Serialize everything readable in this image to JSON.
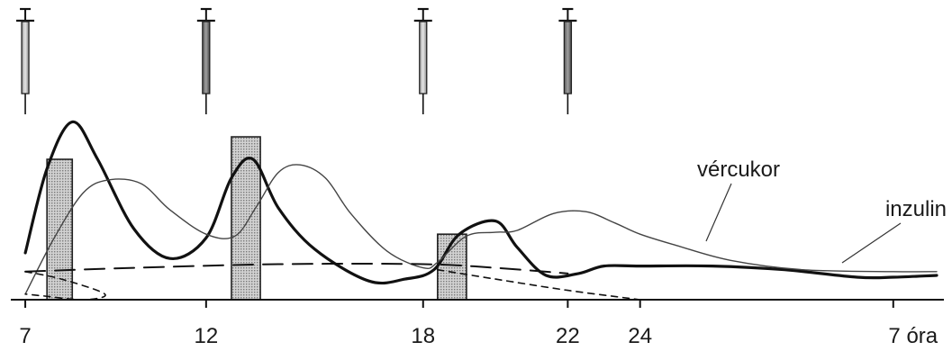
{
  "chart_data": {
    "type": "line",
    "x_ticks": [
      {
        "value": 7,
        "label": "7"
      },
      {
        "value": 12,
        "label": "12"
      },
      {
        "value": 18,
        "label": "18"
      },
      {
        "value": 22,
        "label": "22"
      },
      {
        "value": 24,
        "label": "24"
      },
      {
        "value": 31,
        "label": "7 óra"
      }
    ],
    "xlim": [
      6.6,
      32.4
    ],
    "ylim": [
      0,
      10
    ],
    "grid": false,
    "legend": "none",
    "labels": {
      "blood_sugar": "vércukor",
      "insulin": "inzulin"
    },
    "injections": [
      {
        "time": 7,
        "fill": "light"
      },
      {
        "time": 12,
        "fill": "dark"
      },
      {
        "time": 18,
        "fill": "light"
      },
      {
        "time": 22,
        "fill": "dark"
      }
    ],
    "meals": [
      {
        "start": 7.6,
        "end": 8.3,
        "value": 7.5
      },
      {
        "start": 12.7,
        "end": 13.5,
        "value": 8.7
      },
      {
        "start": 18.4,
        "end": 19.2,
        "value": 3.5
      }
    ],
    "series": [
      {
        "key": "blood_sugar",
        "style": "thick",
        "color": "#111111",
        "x": [
          7.0,
          7.6,
          8.3,
          9.0,
          10.0,
          11.0,
          12.0,
          12.7,
          13.3,
          14.0,
          15.0,
          16.5,
          17.5,
          18.3,
          19.0,
          20.0,
          20.6,
          21.4,
          22.3,
          23.0,
          24.0,
          26.0,
          28.0,
          30.0,
          31.0,
          32.2
        ],
        "y": [
          2.5,
          7.0,
          9.5,
          7.5,
          3.8,
          2.2,
          3.3,
          6.5,
          7.5,
          4.9,
          2.7,
          1.0,
          1.1,
          1.6,
          3.5,
          4.2,
          2.8,
          1.3,
          1.4,
          1.8,
          1.8,
          1.8,
          1.6,
          1.2,
          1.2,
          1.3
        ]
      },
      {
        "key": "insulin",
        "style": "thin",
        "color": "#444444",
        "x": [
          7.0,
          7.8,
          8.6,
          9.3,
          10.2,
          11.0,
          12.0,
          12.8,
          13.4,
          14.0,
          14.6,
          15.3,
          16.0,
          17.0,
          18.0,
          18.4,
          19.2,
          20.0,
          20.6,
          21.6,
          22.5,
          23.3,
          24.0,
          25.0,
          26.5,
          28.5,
          31.0,
          32.2
        ],
        "y": [
          0.3,
          3.3,
          5.7,
          6.4,
          6.2,
          4.8,
          3.5,
          3.4,
          5.0,
          6.8,
          7.2,
          6.5,
          4.6,
          2.6,
          1.7,
          2.0,
          3.4,
          3.6,
          3.7,
          4.6,
          4.7,
          4.1,
          3.5,
          2.9,
          2.1,
          1.6,
          1.5,
          1.5
        ]
      },
      {
        "key": "dashed_long",
        "style": "long-dash",
        "color": "#111111",
        "x": [
          7.0,
          10.0,
          14.0,
          18.0,
          20.0,
          22.0
        ],
        "y": [
          1.5,
          1.7,
          1.9,
          1.9,
          1.7,
          1.4
        ]
      },
      {
        "key": "dashed_short",
        "style": "short-dash",
        "color": "#111111",
        "x": [
          7.0,
          8.0,
          9.2,
          8.6,
          7.5,
          7.0
        ],
        "y": [
          1.5,
          1.1,
          0.3,
          0.0,
          0.2,
          0.3
        ]
      },
      {
        "key": "dashed_falling",
        "style": "short-dash",
        "color": "#111111",
        "x": [
          18.4,
          20.0,
          22.0,
          24.0
        ],
        "y": [
          1.6,
          1.1,
          0.5,
          0.0
        ]
      }
    ]
  }
}
